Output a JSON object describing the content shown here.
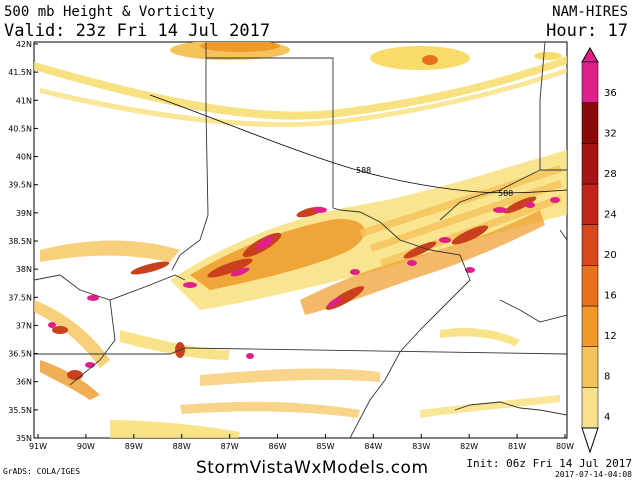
{
  "header": {
    "title": "500 mb Height & Vorticity",
    "valid": "Valid: 23z Fri 14 Jul 2017",
    "model": "NAM-HIRES",
    "hour": "Hour: 17"
  },
  "map": {
    "lat_labels": [
      "42N",
      "41.5N",
      "41N",
      "40.5N",
      "40N",
      "39.5N",
      "39N",
      "38.5N",
      "38N",
      "37.5N",
      "37N",
      "36.5N",
      "36N",
      "35.5N",
      "35N"
    ],
    "lon_labels": [
      "91W",
      "90W",
      "89W",
      "88W",
      "87W",
      "86W",
      "85W",
      "84W",
      "83W",
      "82W",
      "81W",
      "80W"
    ],
    "contour_labels": [
      "588",
      "588"
    ],
    "colors": {
      "light": "#f7dc6a",
      "orange": "#ef9a2a",
      "red": "#c8401c",
      "magenta": "#e0208a",
      "border": "#333333"
    }
  },
  "colorbar": {
    "levels": [
      "4",
      "8",
      "12",
      "16",
      "20",
      "24",
      "28",
      "32",
      "36"
    ],
    "colors": [
      "#f9e08a",
      "#f6c35a",
      "#ef9a2a",
      "#e8701e",
      "#d9481a",
      "#c2261a",
      "#a61414",
      "#8a0a0a",
      "#e0208a"
    ]
  },
  "footer": {
    "credit": "GrADS: COLA/IGES",
    "site": "StormVistaWxModels.com",
    "init": "Init: 06z Fri 14 Jul 2017",
    "stamp": "2017-07-14-04:08"
  }
}
